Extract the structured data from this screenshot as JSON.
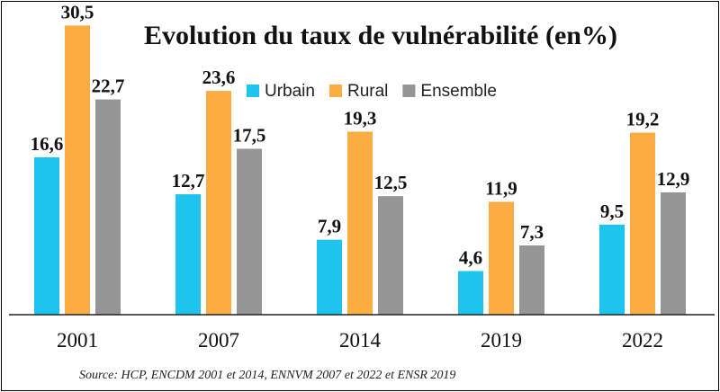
{
  "chart_data": {
    "type": "bar",
    "title": "Evolution du taux de vulnérabilité (en%)",
    "categories": [
      "2001",
      "2007",
      "2014",
      "2019",
      "2022"
    ],
    "series": [
      {
        "name": "Urbain",
        "color": "#1ec3ee",
        "values": [
          16.6,
          12.7,
          7.9,
          4.6,
          9.5
        ],
        "labels": [
          "16,6",
          "12,7",
          "7,9",
          "4,6",
          "9,5"
        ]
      },
      {
        "name": "Rural",
        "color": "#fbac43",
        "values": [
          30.5,
          23.6,
          19.3,
          11.9,
          19.2
        ],
        "labels": [
          "30,5",
          "23,6",
          "19,3",
          "11,9",
          "19,2"
        ]
      },
      {
        "name": "Ensemble",
        "color": "#959595",
        "values": [
          22.7,
          17.5,
          12.5,
          7.3,
          12.9
        ],
        "labels": [
          "22,7",
          "17,5",
          "12,5",
          "7,3",
          "12,9"
        ]
      }
    ],
    "xlabel": "",
    "ylabel": "",
    "ylim": [
      0,
      33
    ],
    "legend_position": "top",
    "grid": false,
    "source": "Source: HCP, ENCDM 2001 et 2014, ENNVM 2007 et 2022 et ENSR 2019"
  }
}
